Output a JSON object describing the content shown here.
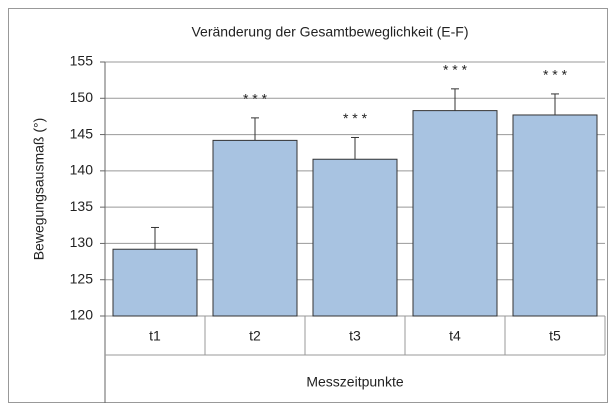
{
  "chart_data": {
    "type": "bar",
    "title": "Veränderung der Gesamtbeweglichkeit (E-F)",
    "y_label": "Bewegungsausmaß (°)",
    "x_label": "Messzeitpunkte",
    "categories": [
      "t1",
      "t2",
      "t3",
      "t4",
      "t5"
    ],
    "values": [
      129.2,
      144.2,
      141.6,
      148.3,
      147.7
    ],
    "errors": [
      3.0,
      3.1,
      3.0,
      3.0,
      2.9
    ],
    "significance": [
      null,
      "* * *",
      "* * *",
      "* * *",
      "* * *"
    ],
    "color": "#a8c3e1",
    "ylim": [
      120,
      155
    ],
    "yticks": [
      120,
      125,
      130,
      135,
      140,
      145,
      150,
      155
    ],
    "grid": true
  }
}
